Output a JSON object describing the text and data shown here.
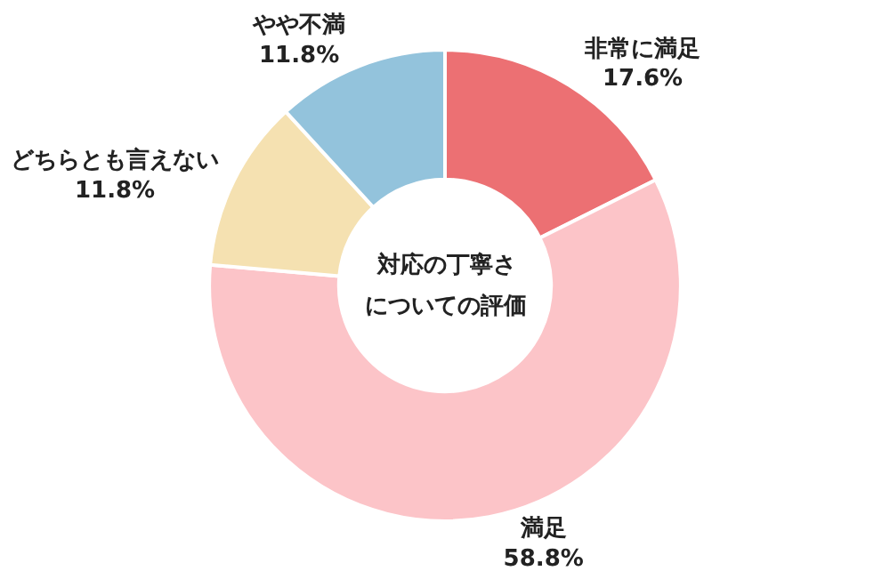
{
  "chart_data": {
    "type": "donut",
    "annotations": [
      "対応の丁寧さ",
      "についての評価"
    ],
    "categories": [
      "非常に満足",
      "満足",
      "どちらとも言えない",
      "やや不満"
    ],
    "values": [
      17.6,
      58.8,
      11.8,
      11.8
    ],
    "value_labels": [
      "17.6%",
      "58.8%",
      "11.8%",
      "11.8%"
    ],
    "colors": [
      "#ec7073",
      "#fcc4c8",
      "#f5e1b1",
      "#93c3dc"
    ],
    "legend": false
  }
}
